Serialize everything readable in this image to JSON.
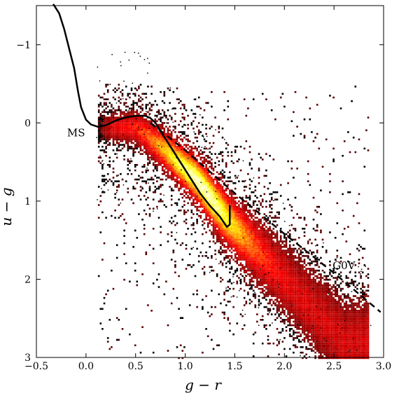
{
  "chart_data": {
    "type": "heatmap",
    "xlabel": "g − r",
    "ylabel": "u − g",
    "xlim": [
      -0.5,
      3.0
    ],
    "ylim": [
      3.0,
      -1.5
    ],
    "y_inverted": true,
    "x_ticks": [
      {
        "value": -0.5,
        "label": "−0.5"
      },
      {
        "value": 0.0,
        "label": "0.0"
      },
      {
        "value": 0.5,
        "label": "0.5"
      },
      {
        "value": 1.0,
        "label": "1.0"
      },
      {
        "value": 1.5,
        "label": "1.5"
      },
      {
        "value": 2.0,
        "label": "2.0"
      },
      {
        "value": 2.5,
        "label": "2.5"
      },
      {
        "value": 3.0,
        "label": "3.0"
      }
    ],
    "y_ticks": [
      {
        "value": -1,
        "label": "−1"
      },
      {
        "value": 0,
        "label": "0"
      },
      {
        "value": 1,
        "label": "1"
      },
      {
        "value": 2,
        "label": "2"
      },
      {
        "value": 3,
        "label": "3"
      }
    ],
    "grid": false,
    "density": {
      "description_colormap": "hot",
      "ridge": [
        {
          "x": 0.2,
          "y": 0.05
        },
        {
          "x": 0.5,
          "y": 0.05
        },
        {
          "x": 0.8,
          "y": 0.35
        },
        {
          "x": 1.1,
          "y": 0.7
        },
        {
          "x": 1.4,
          "y": 1.2
        },
        {
          "x": 1.7,
          "y": 1.6
        },
        {
          "x": 2.0,
          "y": 2.0
        },
        {
          "x": 2.3,
          "y": 2.4
        },
        {
          "x": 2.6,
          "y": 2.8
        }
      ]
    },
    "series": [
      {
        "style": "solid",
        "color": "#000000",
        "points": [
          {
            "x": -0.33,
            "y": -1.52
          },
          {
            "x": -0.27,
            "y": -1.4
          },
          {
            "x": -0.22,
            "y": -1.2
          },
          {
            "x": -0.17,
            "y": -0.95
          },
          {
            "x": -0.12,
            "y": -0.7
          },
          {
            "x": -0.08,
            "y": -0.4
          },
          {
            "x": -0.05,
            "y": -0.2
          },
          {
            "x": 0.0,
            "y": -0.04
          },
          {
            "x": 0.05,
            "y": 0.02
          },
          {
            "x": 0.12,
            "y": 0.05
          },
          {
            "x": 0.2,
            "y": 0.03
          },
          {
            "x": 0.3,
            "y": -0.03
          },
          {
            "x": 0.4,
            "y": -0.07
          },
          {
            "x": 0.5,
            "y": -0.09
          },
          {
            "x": 0.6,
            "y": -0.09
          },
          {
            "x": 0.65,
            "y": -0.06
          },
          {
            "x": 0.7,
            "y": 0.0
          },
          {
            "x": 0.75,
            "y": 0.1
          },
          {
            "x": 0.85,
            "y": 0.3
          },
          {
            "x": 0.95,
            "y": 0.5
          },
          {
            "x": 1.05,
            "y": 0.7
          },
          {
            "x": 1.15,
            "y": 0.9
          },
          {
            "x": 1.25,
            "y": 1.06
          },
          {
            "x": 1.35,
            "y": 1.2
          },
          {
            "x": 1.42,
            "y": 1.33
          },
          {
            "x": 1.45,
            "y": 1.3
          },
          {
            "x": 1.45,
            "y": 1.05
          }
        ]
      },
      {
        "style": "dashed",
        "color": "#000000",
        "points": [
          {
            "x": 0.65,
            "y": 0.0
          },
          {
            "x": 1.0,
            "y": 0.35
          },
          {
            "x": 1.5,
            "y": 0.9
          },
          {
            "x": 2.0,
            "y": 1.42
          },
          {
            "x": 2.5,
            "y": 1.92
          },
          {
            "x": 2.97,
            "y": 2.42
          }
        ]
      }
    ],
    "annotations": [
      {
        "text": "MS",
        "x": -0.1,
        "y": 0.17
      },
      {
        "text": "G0V",
        "x": 2.6,
        "y": 1.87
      }
    ]
  }
}
